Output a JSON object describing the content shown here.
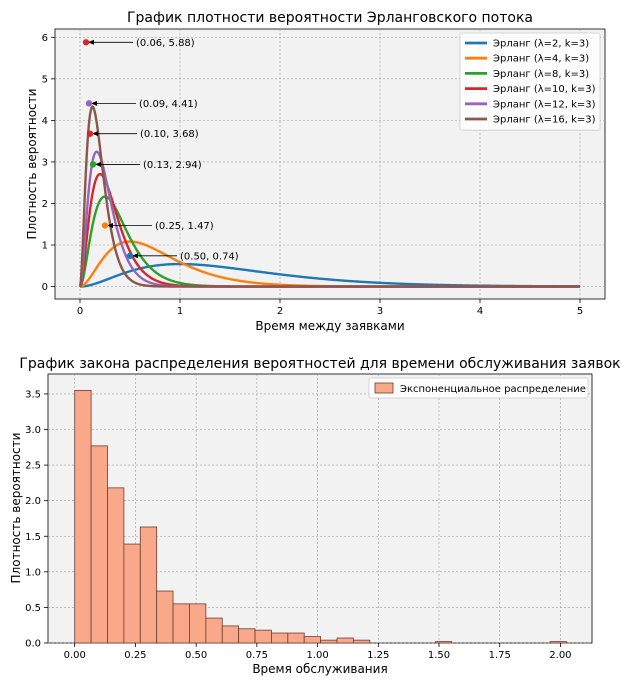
{
  "chart_data": [
    {
      "type": "line",
      "title": "График плотности вероятности Эрланговского потока",
      "xlabel": "Время между заявками",
      "ylabel": "Плотность вероятности",
      "xlim": [
        -0.25,
        5.25
      ],
      "ylim": [
        -0.3,
        6.2
      ],
      "xticks": [
        "0",
        "1",
        "2",
        "3",
        "4",
        "5"
      ],
      "yticks": [
        "0",
        "1",
        "2",
        "3",
        "4",
        "5",
        "6"
      ],
      "grid": true,
      "legend_position": "top-right",
      "k": 3,
      "series": [
        {
          "name": "Эрланг (λ=2, k=3)",
          "lambda": 2,
          "color": "#1f77b4"
        },
        {
          "name": "Эрланг (λ=4, k=3)",
          "lambda": 4,
          "color": "#ff7f0e"
        },
        {
          "name": "Эрланг (λ=8, k=3)",
          "lambda": 8,
          "color": "#2ca02c"
        },
        {
          "name": "Эрланг (λ=10, k=3)",
          "lambda": 10,
          "color": "#d62728"
        },
        {
          "name": "Эрланг (λ=12, k=3)",
          "lambda": 12,
          "color": "#9467bd"
        },
        {
          "name": "Эрланг (λ=16, k=3)",
          "lambda": 16,
          "color": "#8c564b"
        }
      ],
      "annotations": [
        {
          "x": 0.5,
          "y": 0.74,
          "text": "(0.50, 0.74)",
          "color": "#1f77b4"
        },
        {
          "x": 0.25,
          "y": 1.47,
          "text": "(0.25, 1.47)",
          "color": "#ff7f0e"
        },
        {
          "x": 0.13,
          "y": 2.94,
          "text": "(0.13, 2.94)",
          "color": "#2ca02c"
        },
        {
          "x": 0.1,
          "y": 3.68,
          "text": "(0.10, 3.68)",
          "color": "#d62728"
        },
        {
          "x": 0.09,
          "y": 4.41,
          "text": "(0.09, 4.41)",
          "color": "#9467bd"
        },
        {
          "x": 0.06,
          "y": 5.88,
          "text": "(0.06, 5.88)",
          "color": "#d62728"
        }
      ]
    },
    {
      "type": "bar",
      "title": "График закона распределения вероятностей для времени обслуживания заявок",
      "xlabel": "Время обслуживания",
      "ylabel": "Плотность вероятности",
      "xlim": [
        -0.11,
        2.13
      ],
      "ylim": [
        0,
        3.78
      ],
      "xticks": [
        "0.00",
        "0.25",
        "0.50",
        "0.75",
        "1.00",
        "1.25",
        "1.50",
        "1.75",
        "2.00"
      ],
      "yticks": [
        "0.0",
        "0.5",
        "1.0",
        "1.5",
        "2.0",
        "2.5",
        "3.0",
        "3.5"
      ],
      "grid": true,
      "legend_position": "top-right",
      "series_name": "Экспоненциальное распределение",
      "bar_color": "#f9a88a",
      "edge_color": "#6b3e31",
      "bin_width": 0.0675,
      "bin_start": 0.0,
      "values": [
        3.55,
        2.77,
        2.18,
        1.39,
        1.63,
        0.73,
        0.55,
        0.55,
        0.35,
        0.24,
        0.2,
        0.18,
        0.14,
        0.14,
        0.09,
        0.04,
        0.07,
        0.04,
        0.0,
        0.0,
        0.0,
        0.0,
        0.02,
        0.0,
        0.0,
        0.0,
        0.0,
        0.0,
        0.0,
        0.02
      ]
    }
  ]
}
